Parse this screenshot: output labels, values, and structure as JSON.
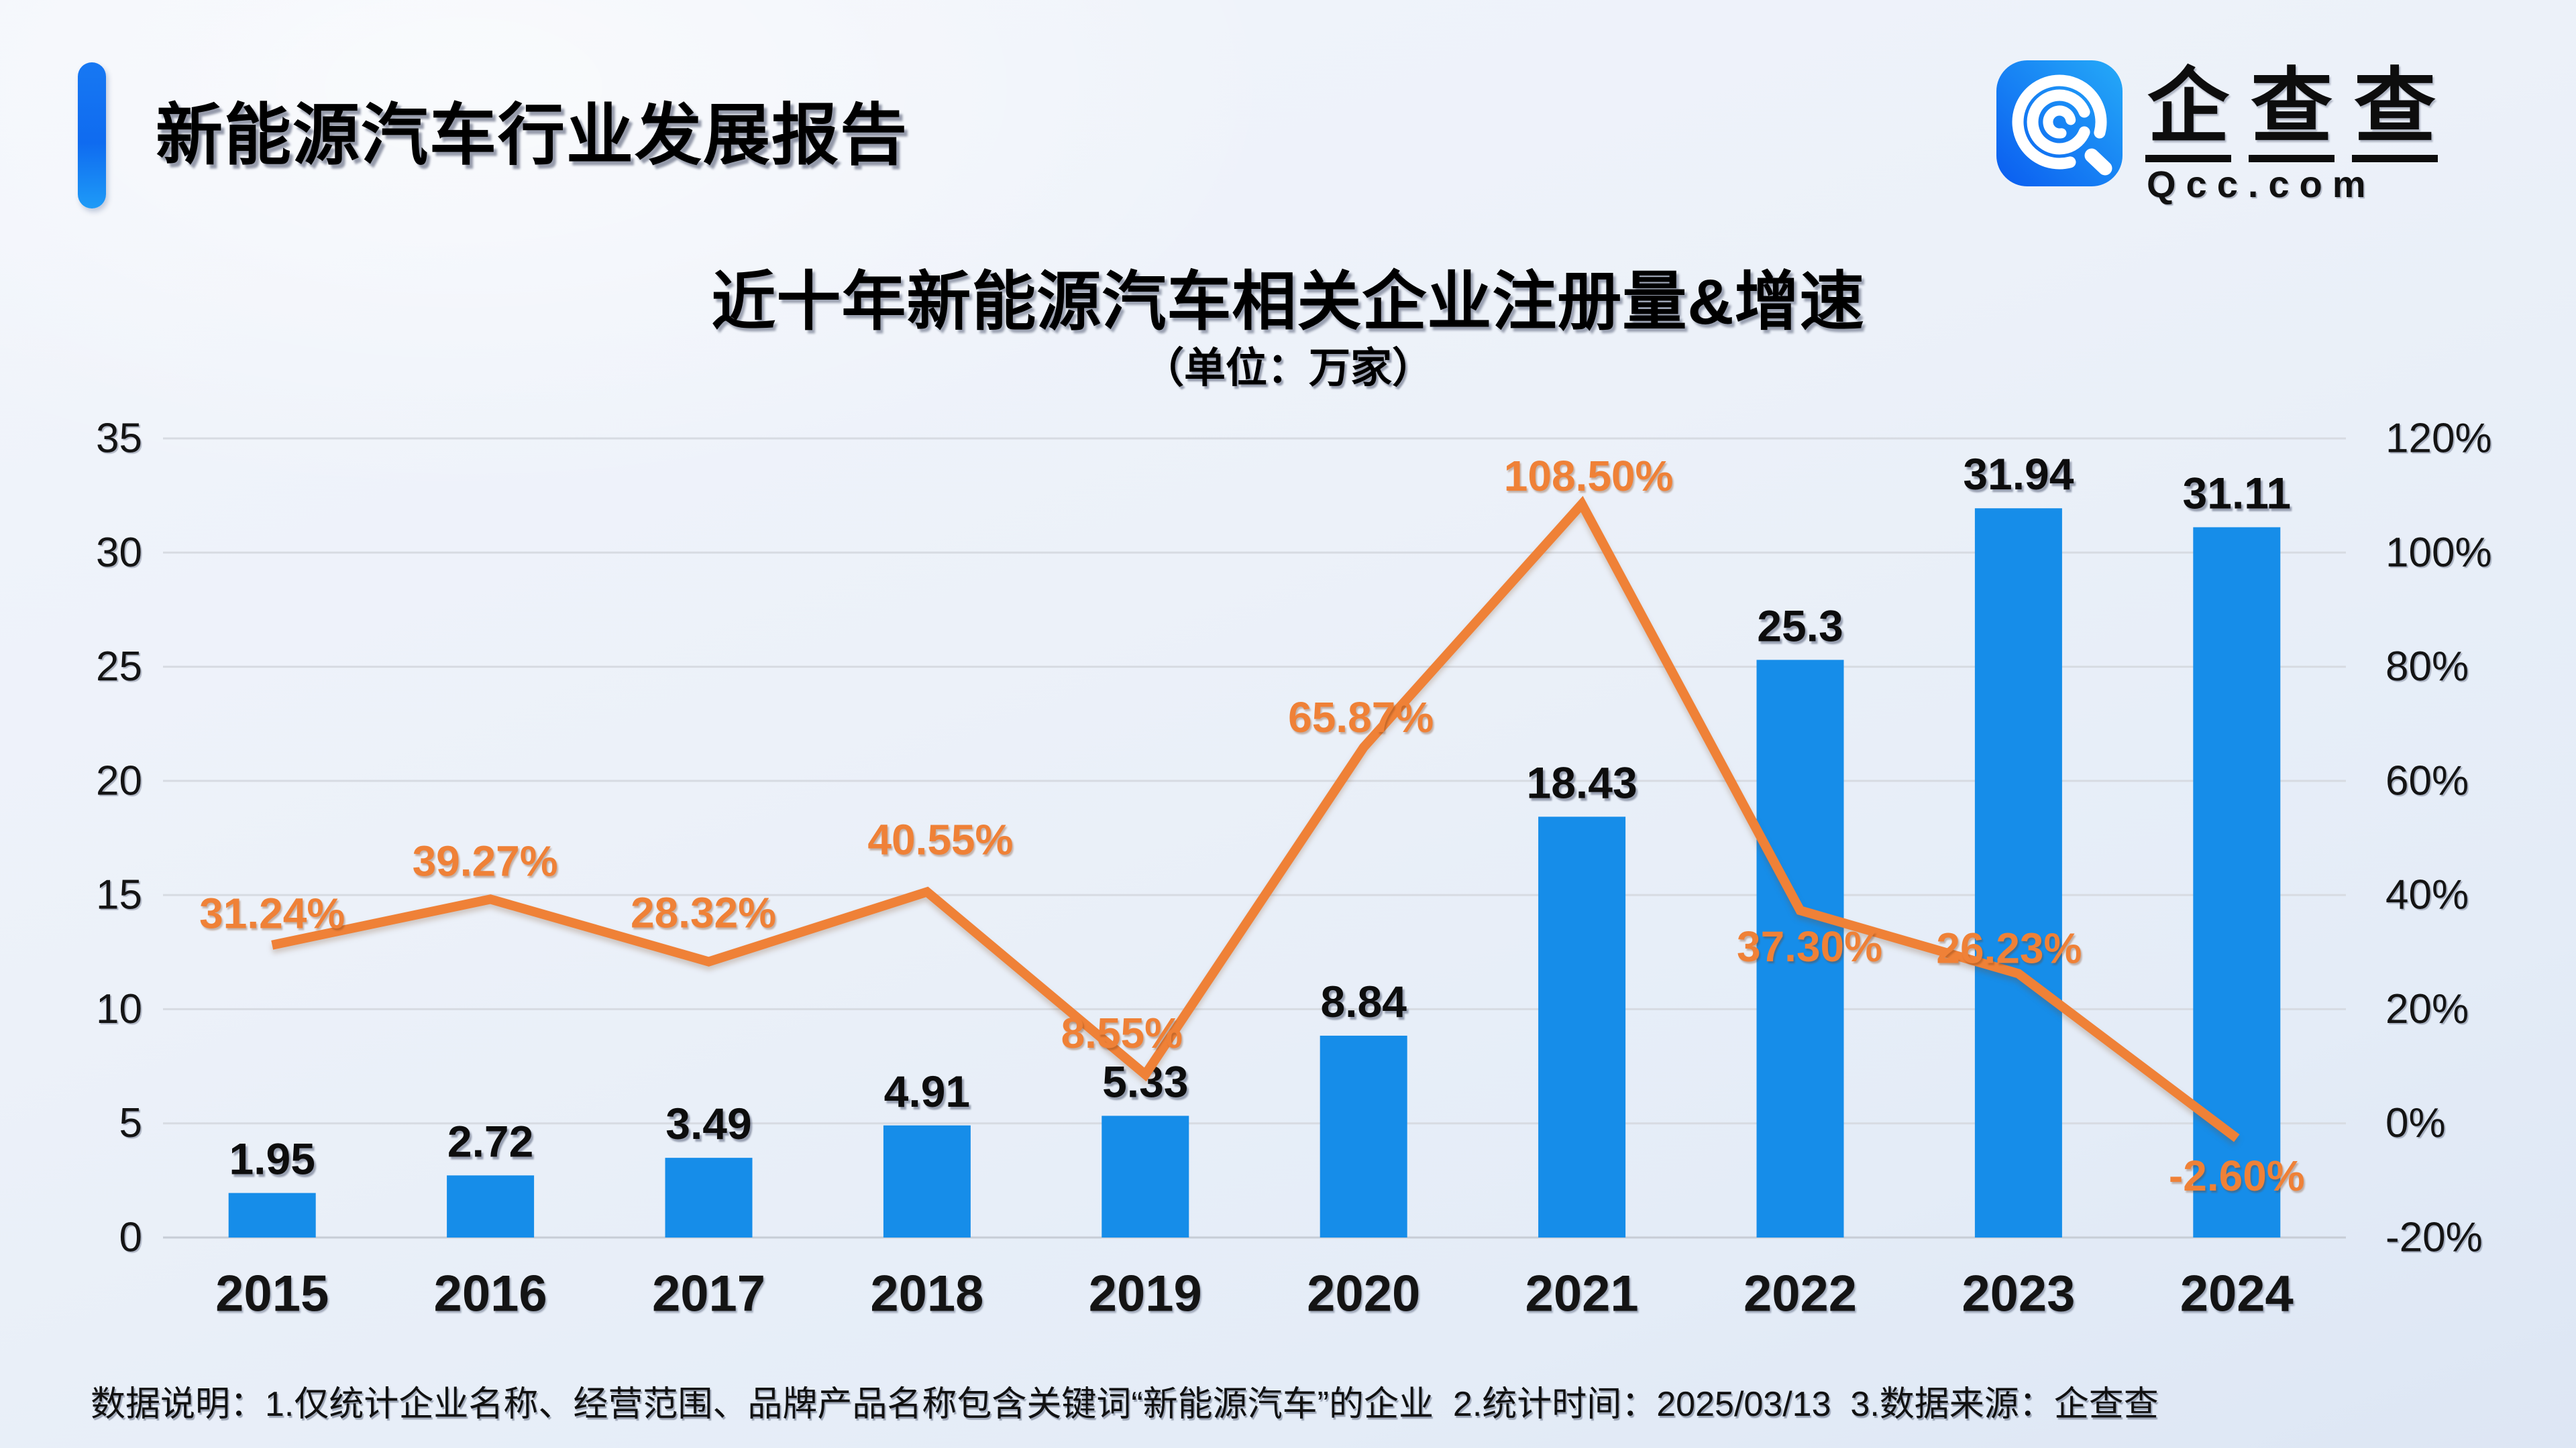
{
  "header": {
    "title": "新能源汽车行业发展报告"
  },
  "logo": {
    "icon": "qcc-magnifier-icon",
    "chars": [
      "企",
      "查",
      "查"
    ],
    "domain": "Qcc.com",
    "icon_gradient_start": "#0a5cf0",
    "icon_gradient_end": "#25aaf8"
  },
  "chart_data": {
    "type": "bar+line",
    "title": "近十年新能源汽车相关企业注册量&增速",
    "subtitle": "（单位：万家）",
    "unit": "万家",
    "categories": [
      "2015",
      "2016",
      "2017",
      "2018",
      "2019",
      "2020",
      "2021",
      "2022",
      "2023",
      "2024"
    ],
    "series": [
      {
        "name": "注册量",
        "type": "bar",
        "axis": "left",
        "color": "#168de9",
        "values": [
          1.95,
          2.72,
          3.49,
          4.91,
          5.33,
          8.84,
          18.43,
          25.3,
          31.94,
          31.11
        ],
        "labels": [
          "1.95",
          "2.72",
          "3.49",
          "4.91",
          "5.33",
          "8.84",
          "18.43",
          "25.3",
          "31.94",
          "31.11"
        ]
      },
      {
        "name": "增速",
        "type": "line",
        "axis": "right",
        "color": "#ef8137",
        "values": [
          31.24,
          39.27,
          28.32,
          40.55,
          8.55,
          65.87,
          108.5,
          37.3,
          26.23,
          -2.6
        ],
        "labels": [
          "31.24%",
          "39.27%",
          "28.32%",
          "40.55%",
          "8.55%",
          "65.87%",
          "108.50%",
          "37.30%",
          "26.23%",
          "-2.60%"
        ]
      }
    ],
    "left_axis": {
      "min": 0,
      "max": 35,
      "step": 5,
      "ticks": [
        "35",
        "30",
        "25",
        "20",
        "15",
        "10",
        "5",
        "0"
      ]
    },
    "right_axis": {
      "min": -20,
      "max": 120,
      "step": 20,
      "ticks": [
        "120%",
        "100%",
        "80%",
        "60%",
        "40%",
        "20%",
        "0%",
        "-20%"
      ]
    },
    "grid": true,
    "legend_position": "none"
  },
  "footer": {
    "note": "数据说明：1.仅统计企业名称、经营范围、品牌产品名称包含关键词“新能源汽车”的企业  2.统计时间：2025/03/13  3.数据来源：企查查"
  },
  "colors": {
    "bar": "#168de9",
    "line": "#ef8137",
    "grid": "#d7dbe2",
    "grid_base": "#c7cdd6",
    "text": "#141414"
  }
}
